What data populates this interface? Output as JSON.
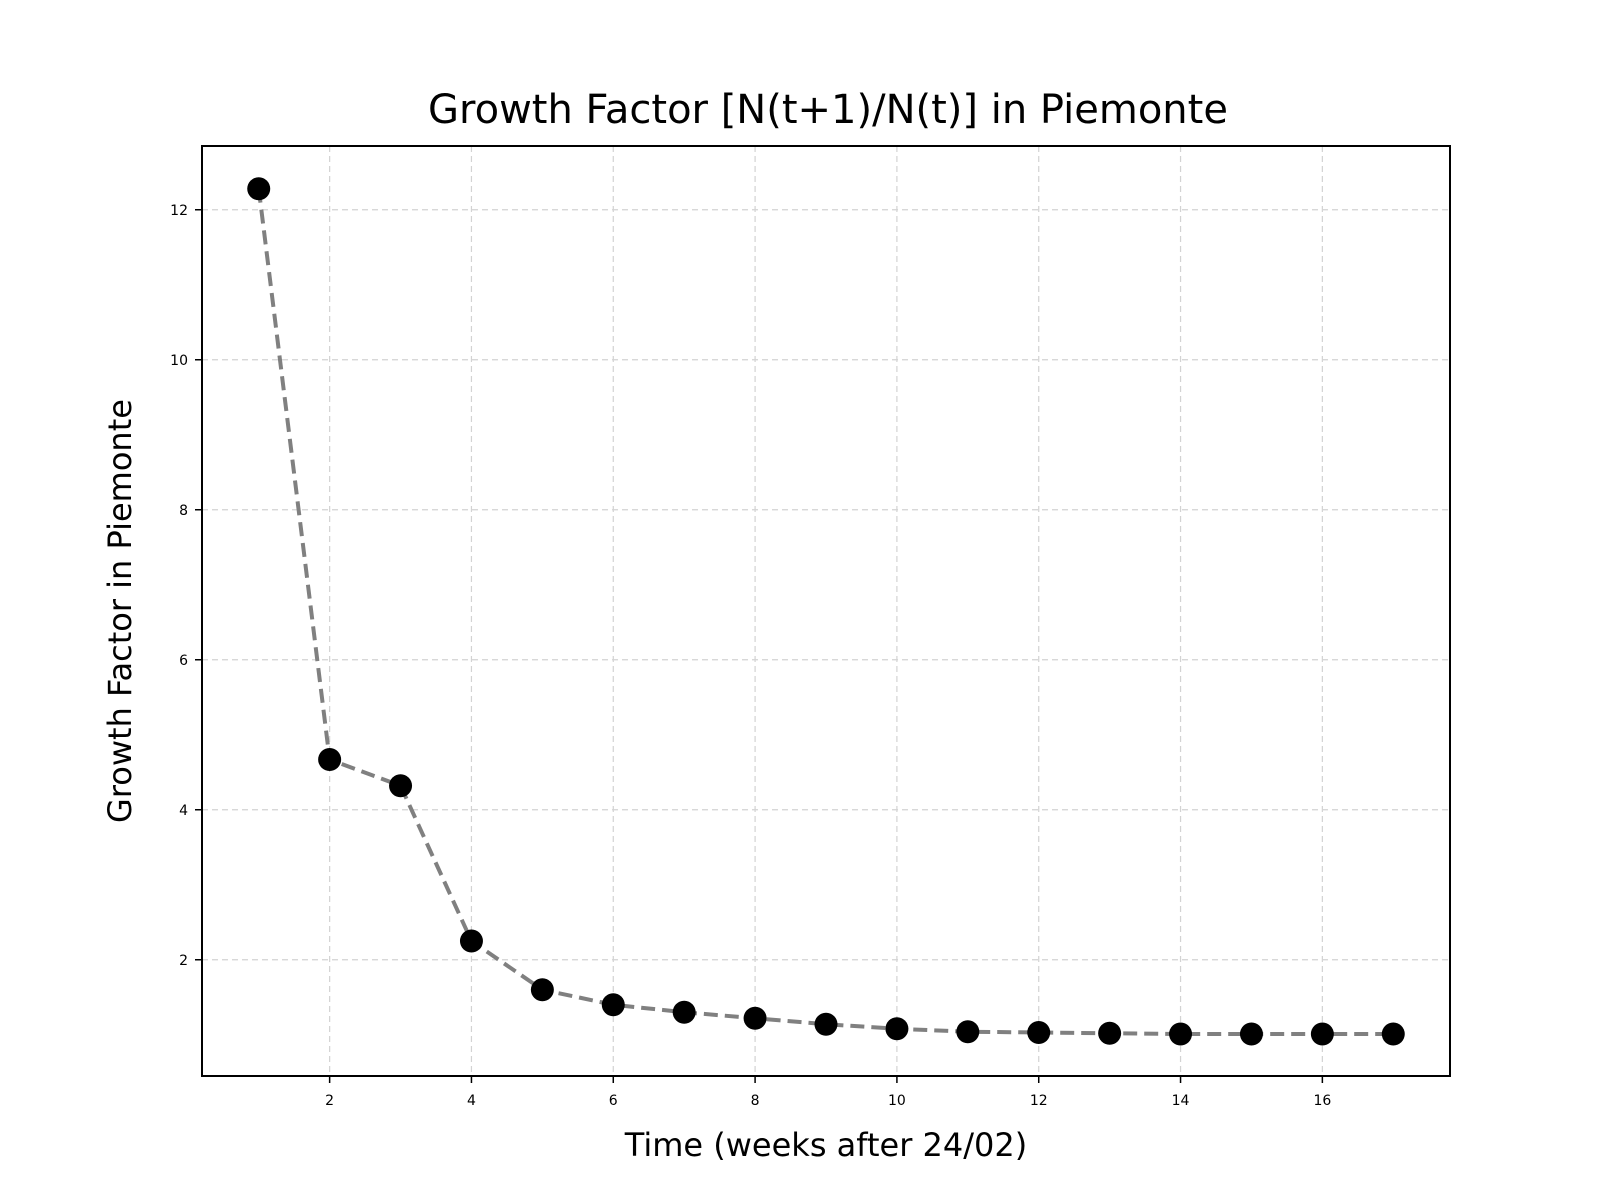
{
  "chart_data": {
    "type": "line",
    "title": "Growth Factor [N(t+1)/N(t)] in Piemonte",
    "xlabel": "Time (weeks after 24/02)",
    "ylabel": "Growth Factor in Piemonte",
    "x": [
      1,
      2,
      3,
      4,
      5,
      6,
      7,
      8,
      9,
      10,
      11,
      12,
      13,
      14,
      15,
      16,
      17
    ],
    "series": [
      {
        "values": [
          12.28,
          4.67,
          4.32,
          2.25,
          1.6,
          1.4,
          1.3,
          1.22,
          1.14,
          1.08,
          1.04,
          1.03,
          1.02,
          1.01,
          1.01,
          1.01,
          1.01
        ]
      }
    ],
    "xlim": [
      0.2,
      17.8
    ],
    "ylim": [
      0.45,
      12.85
    ],
    "xticks": [
      2,
      4,
      6,
      8,
      10,
      12,
      14,
      16
    ],
    "yticks": [
      2,
      4,
      6,
      8,
      10,
      12
    ],
    "grid": true,
    "colors": {
      "line": "#808080",
      "marker": "#000000",
      "grid": "#d3d3d3"
    }
  }
}
